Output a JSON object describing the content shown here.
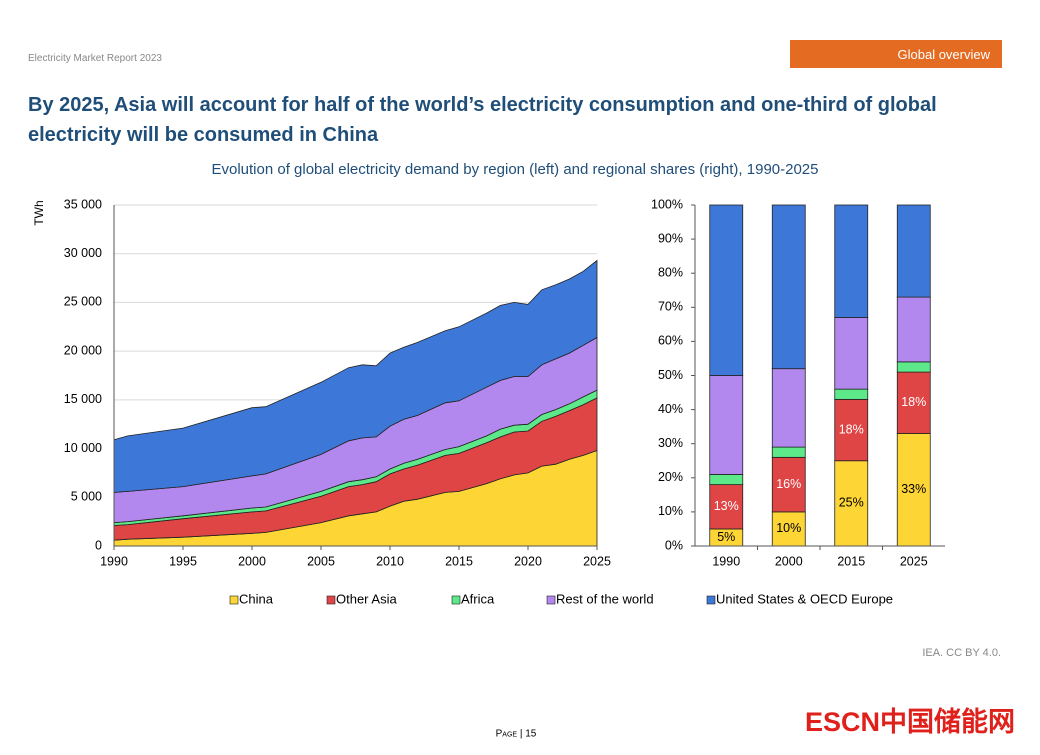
{
  "header": {
    "report": "Electricity Market Report 2023",
    "section": "Global overview"
  },
  "title": "By 2025, Asia will account for half of the world’s electricity consumption and one-third of global electricity will be consumed in China",
  "subtitle": "Evolution of global electricity demand by region (left) and regional shares (right), 1990-2025",
  "chart_data": [
    {
      "type": "area",
      "stacked": true,
      "ylabel": "TWh",
      "x": [
        1990,
        1991,
        1995,
        2000,
        2001,
        2005,
        2007,
        2008,
        2009,
        2010,
        2011,
        2012,
        2014,
        2015,
        2017,
        2018,
        2019,
        2020,
        2021,
        2022,
        2023,
        2024,
        2025
      ],
      "xlim": [
        1990,
        2025
      ],
      "xticks": [
        1990,
        1995,
        2000,
        2005,
        2010,
        2015,
        2020,
        2025
      ],
      "ylim": [
        0,
        35000
      ],
      "yticks": [
        0,
        {
          "value": 5000,
          "label": "5 000"
        },
        {
          "value": 10000,
          "label": "10 000"
        },
        {
          "value": 15000,
          "label": "15 000"
        },
        {
          "value": 20000,
          "label": "20 000"
        },
        {
          "value": 25000,
          "label": "25 000"
        },
        {
          "value": 30000,
          "label": "30 000"
        },
        {
          "value": 35000,
          "label": "35 000"
        }
      ],
      "grid": true,
      "legend": "bottom",
      "series": [
        {
          "name": "China",
          "color": "#fdd535",
          "values": [
            600,
            700,
            900,
            1300,
            1400,
            2400,
            3100,
            3300,
            3500,
            4100,
            4600,
            4800,
            5500,
            5600,
            6400,
            6900,
            7300,
            7500,
            8200,
            8400,
            8900,
            9300,
            9800
          ]
        },
        {
          "name": "Other Asia",
          "color": "#e04545",
          "values": [
            1500,
            1500,
            1900,
            2200,
            2200,
            2700,
            3000,
            3000,
            3100,
            3300,
            3300,
            3500,
            3800,
            3900,
            4200,
            4300,
            4400,
            4300,
            4600,
            4900,
            5000,
            5200,
            5400
          ]
        },
        {
          "name": "Africa",
          "color": "#5de88a",
          "values": [
            300,
            300,
            300,
            400,
            400,
            500,
            500,
            500,
            500,
            500,
            600,
            600,
            600,
            700,
            700,
            800,
            700,
            700,
            700,
            700,
            700,
            800,
            800
          ]
        },
        {
          "name": "Rest of the world",
          "color": "#b388ee",
          "values": [
            3100,
            3100,
            3000,
            3300,
            3400,
            3800,
            4200,
            4300,
            4100,
            4400,
            4500,
            4500,
            4800,
            4700,
            5000,
            5000,
            5000,
            4900,
            5100,
            5200,
            5200,
            5300,
            5400
          ]
        },
        {
          "name": "United States & OECD Europe",
          "color": "#3d78d8",
          "values": [
            5400,
            5700,
            6000,
            7000,
            6900,
            7400,
            7500,
            7500,
            7300,
            7500,
            7400,
            7500,
            7400,
            7600,
            7600,
            7700,
            7600,
            7400,
            7700,
            7600,
            7600,
            7600,
            7900
          ]
        }
      ]
    },
    {
      "type": "bar",
      "stacked": true,
      "categories": [
        "1990",
        "2000",
        "2015",
        "2025"
      ],
      "ylim": [
        0,
        100
      ],
      "yticks": [
        {
          "value": 0,
          "label": "0%"
        },
        {
          "value": 10,
          "label": "10%"
        },
        {
          "value": 20,
          "label": "20%"
        },
        {
          "value": 30,
          "label": "30%"
        },
        {
          "value": 40,
          "label": "40%"
        },
        {
          "value": 50,
          "label": "50%"
        },
        {
          "value": 60,
          "label": "60%"
        },
        {
          "value": 70,
          "label": "70%"
        },
        {
          "value": 80,
          "label": "80%"
        },
        {
          "value": 90,
          "label": "90%"
        },
        {
          "value": 100,
          "label": "100%"
        }
      ],
      "series": [
        {
          "color": "#fdd535",
          "values": [
            5,
            10,
            25,
            33
          ],
          "value_labels": [
            "5%",
            "10%",
            "25%",
            "33%"
          ]
        },
        {
          "color": "#e04545",
          "values": [
            13,
            16,
            18,
            18
          ],
          "value_labels": [
            "13%",
            "16%",
            "18%",
            "18%"
          ]
        },
        {
          "color": "#5de88a",
          "values": [
            3,
            3,
            3,
            3
          ]
        },
        {
          "color": "#b388ee",
          "values": [
            29,
            23,
            21,
            19
          ]
        },
        {
          "color": "#3d78d8",
          "values": [
            50,
            48,
            33,
            27
          ]
        }
      ]
    }
  ],
  "footer": {
    "source": "IEA. CC BY 4.0.",
    "page": "Page | 15",
    "watermark": "ESCN中国储能网"
  }
}
